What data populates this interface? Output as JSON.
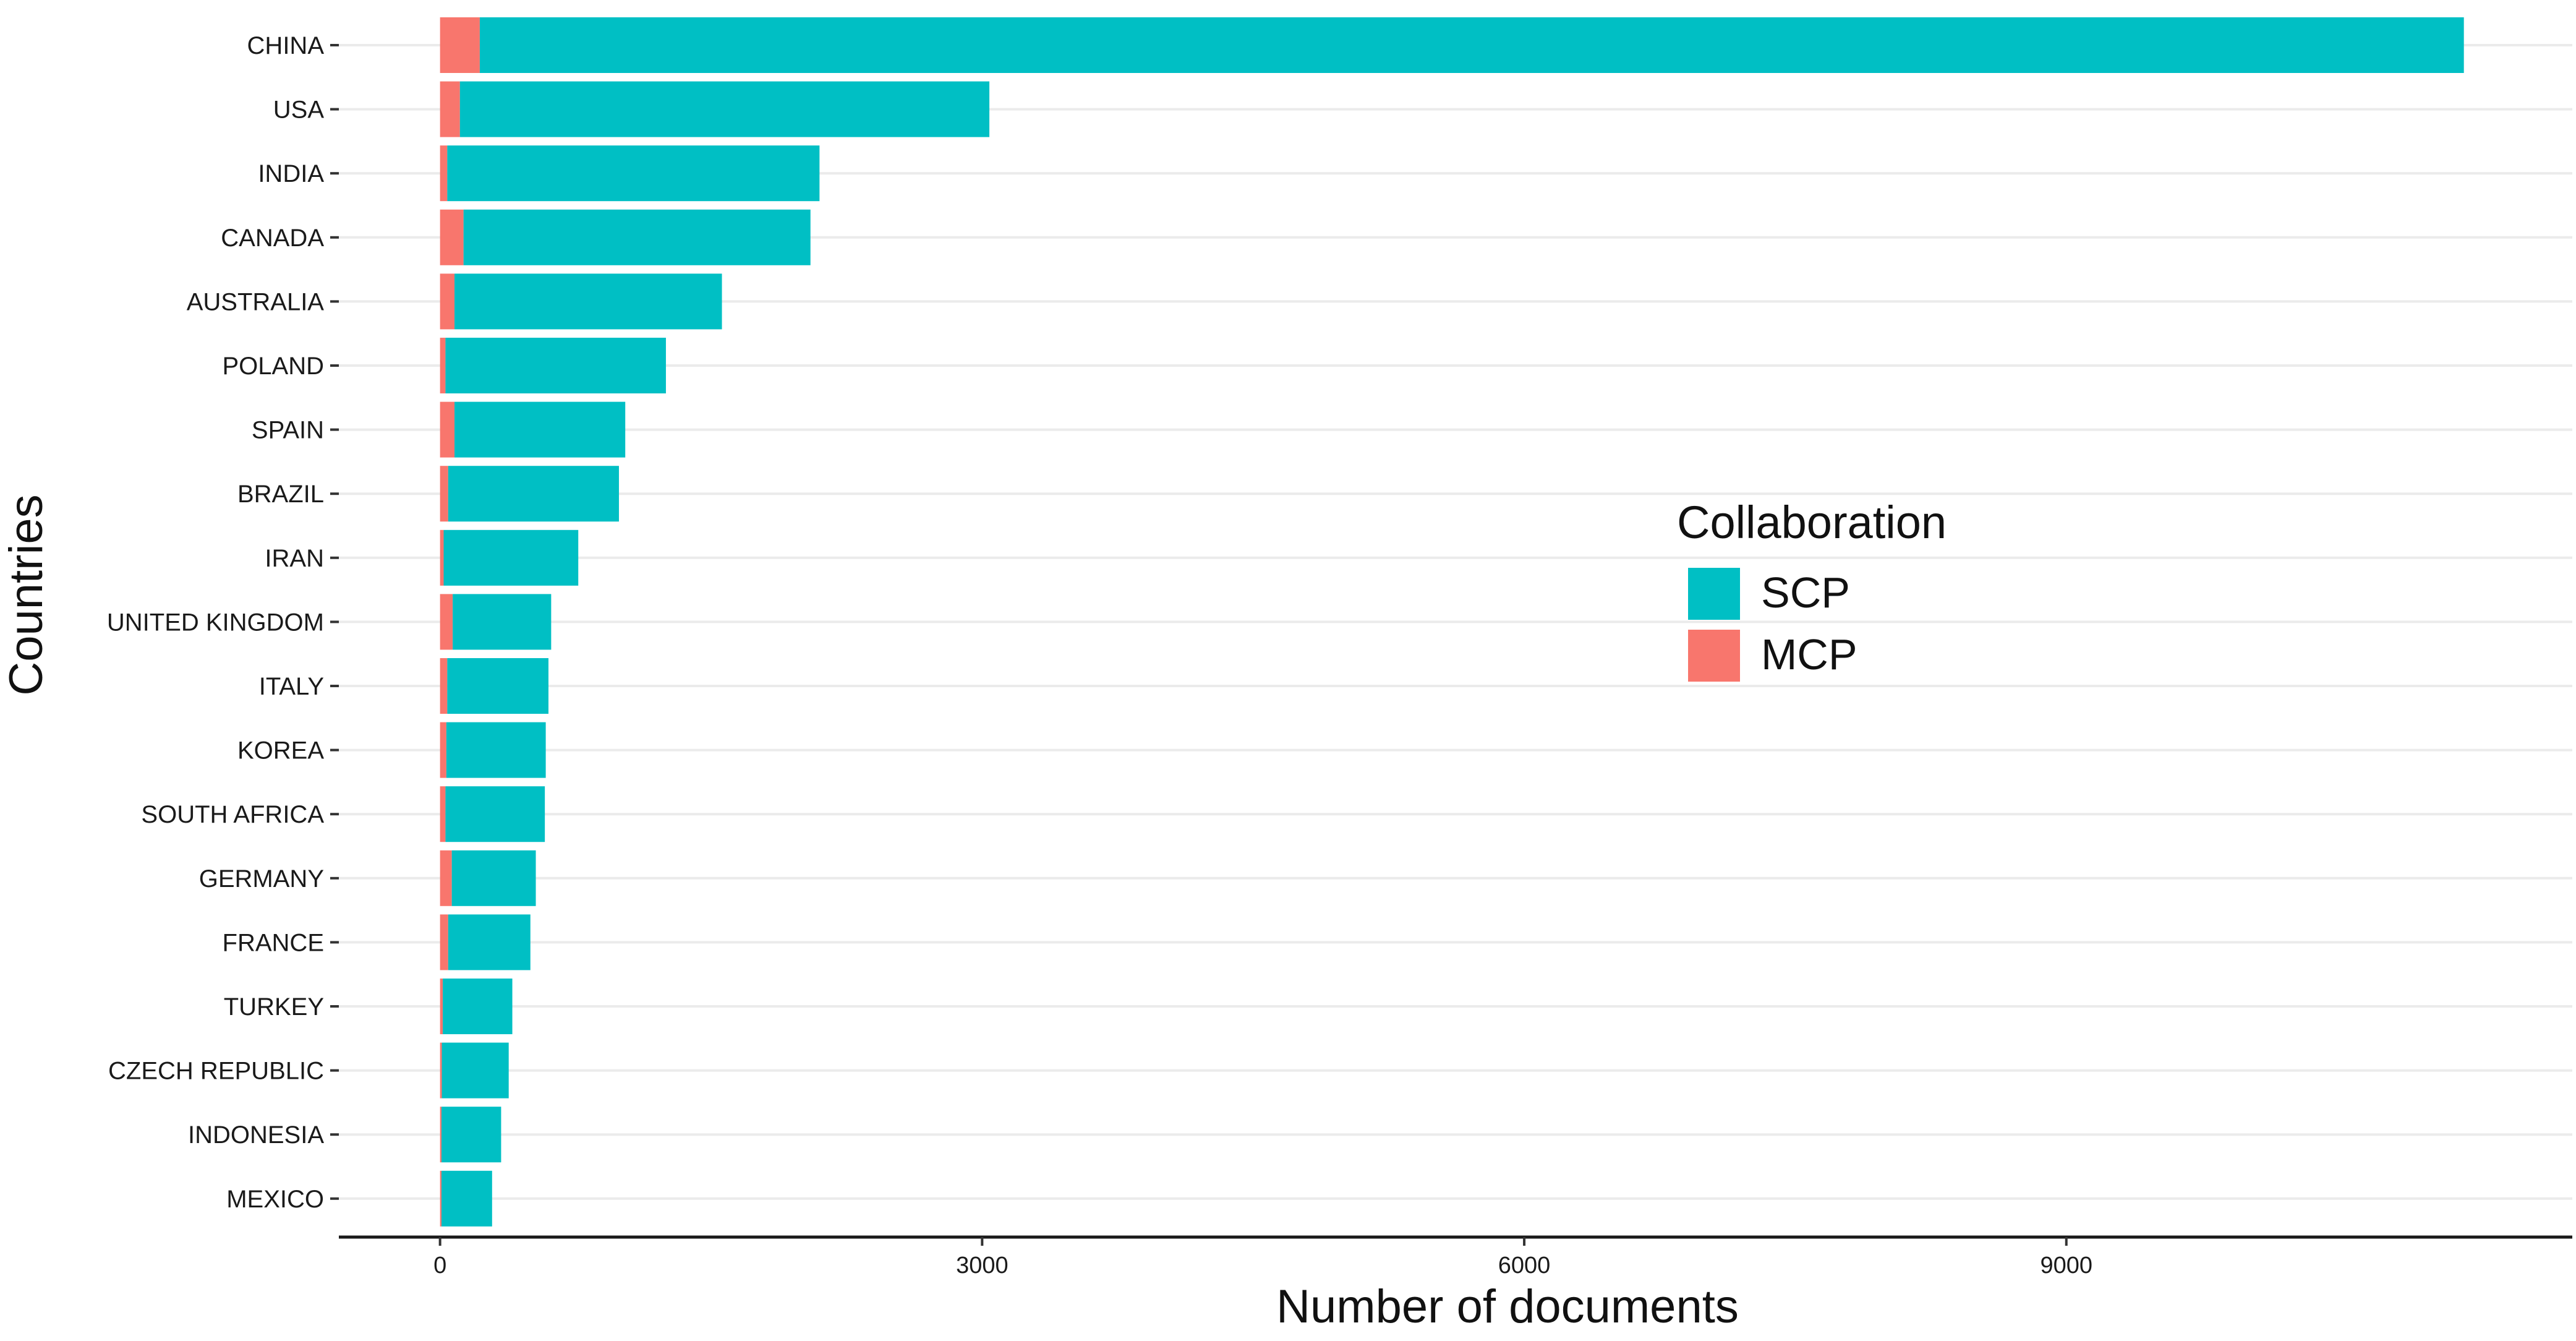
{
  "chart_data": {
    "type": "bar",
    "stacked": true,
    "orientation": "horizontal",
    "title": "",
    "xlabel": "Number of documents",
    "ylabel": "Countries",
    "xlim": [
      -560,
      11800
    ],
    "xticks": [
      0,
      3000,
      6000,
      9000
    ],
    "grid": true,
    "legend": {
      "title": "Collaboration",
      "placement": "right",
      "entries": [
        "SCP",
        "MCP"
      ]
    },
    "colors": {
      "SCP": "#00BFC4",
      "MCP": "#F8766D"
    },
    "categories": [
      "CHINA",
      "USA",
      "INDIA",
      "CANADA",
      "AUSTRALIA",
      "POLAND",
      "SPAIN",
      "BRAZIL",
      "IRAN",
      "UNITED KINGDOM",
      "ITALY",
      "KOREA",
      "SOUTH AFRICA",
      "GERMANY",
      "FRANCE",
      "TURKEY",
      "CZECH REPUBLIC",
      "INDONESIA",
      "MEXICO"
    ],
    "series": [
      {
        "name": "MCP",
        "values": [
          220,
          110,
          40,
          130,
          80,
          30,
          80,
          45,
          20,
          70,
          40,
          35,
          30,
          65,
          45,
          15,
          10,
          8,
          8
        ]
      },
      {
        "name": "SCP",
        "values": [
          10980,
          2930,
          2060,
          1920,
          1480,
          1220,
          945,
          945,
          745,
          545,
          560,
          550,
          550,
          465,
          455,
          385,
          370,
          330,
          280
        ]
      }
    ]
  }
}
